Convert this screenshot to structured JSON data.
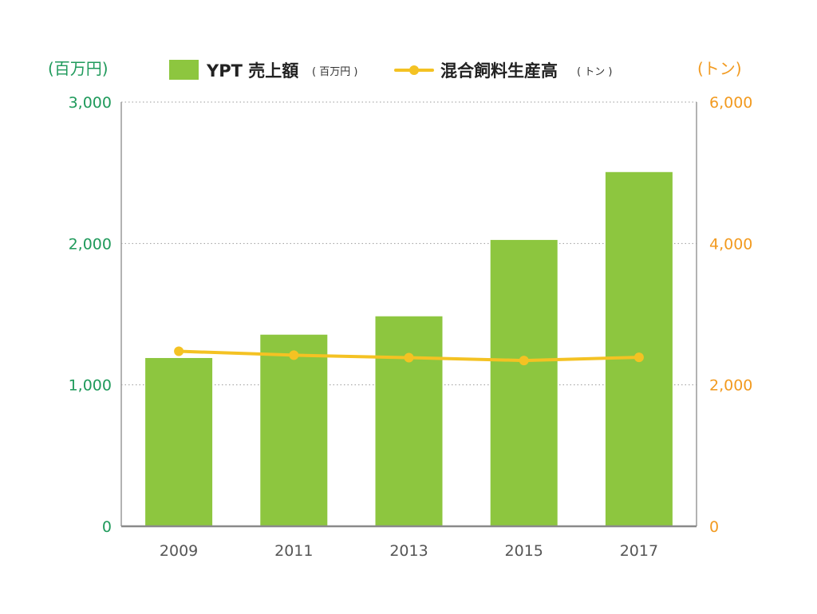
{
  "chart_data": {
    "type": "bar",
    "categories": [
      "2009",
      "2011",
      "2013",
      "2015",
      "2017"
    ],
    "series": [
      {
        "name": "YPT 売上額",
        "name_unit": "( 百万円 )",
        "type": "bar",
        "axis": "left",
        "values": [
          1190,
          1355,
          1485,
          2025,
          2505
        ],
        "color": "#8dc63f"
      },
      {
        "name": "混合飼料生産高",
        "name_unit": "( トン )",
        "type": "line",
        "axis": "right",
        "values": [
          2475,
          2420,
          2385,
          2345,
          2390
        ],
        "color": "#f4c223"
      }
    ],
    "left_axis": {
      "unit": "(百万円)",
      "ylim": [
        0,
        3000
      ],
      "ticks": [
        "0",
        "1,000",
        "2,000",
        "3,000"
      ],
      "color": "#1f9a5b"
    },
    "right_axis": {
      "unit": "(トン)",
      "ylim": [
        0,
        6000
      ],
      "ticks": [
        "0",
        "2,000",
        "4,000",
        "6,000"
      ],
      "color": "#f29a1f"
    },
    "grid": true,
    "legend": "top"
  }
}
